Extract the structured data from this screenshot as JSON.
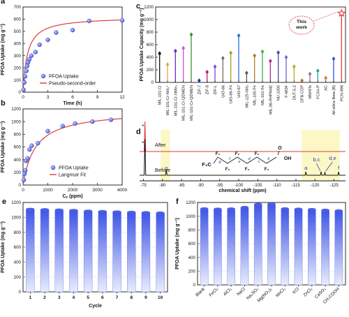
{
  "chart_data": [
    {
      "id": "a",
      "panel_label": "a",
      "type": "scatter",
      "xlabel": "Time (h)",
      "ylabel": "PFOA Uptake (mg g⁻¹)",
      "xlim": [
        0,
        12
      ],
      "ylim": [
        0,
        700
      ],
      "xticks": [
        0,
        3,
        6,
        9,
        12
      ],
      "yticks": [
        0,
        100,
        200,
        300,
        400,
        500,
        600,
        700
      ],
      "series": [
        {
          "name": "PFOA Uptake",
          "marker": "circle",
          "color": "#4a5fe0",
          "x": [
            0.05,
            0.15,
            0.25,
            0.4,
            0.5,
            0.6,
            0.75,
            1.0,
            1.5,
            2,
            3,
            4,
            6,
            8,
            12
          ],
          "y": [
            20,
            80,
            130,
            175,
            215,
            245,
            270,
            300,
            330,
            390,
            430,
            490,
            510,
            585,
            590
          ]
        },
        {
          "name": "Pseudo-second-order",
          "line": true,
          "color": "#e03a3a",
          "model": {
            "qe": 620,
            "k": 0.003
          }
        }
      ]
    },
    {
      "id": "b",
      "panel_label": "b",
      "type": "scatter",
      "xlabel": "Cₑ (ppm)",
      "ylabel": "PFOA Uptake (mg g⁻¹)",
      "xlim": [
        0,
        4000
      ],
      "ylim": [
        0,
        1200
      ],
      "xticks": [
        0,
        1000,
        2000,
        3000,
        4000
      ],
      "yticks": [
        0,
        200,
        400,
        600,
        800,
        1000,
        1200
      ],
      "series": [
        {
          "name": "PFOA Uptake",
          "marker": "circle",
          "color": "#4a5fe0",
          "x": [
            30,
            60,
            90,
            120,
            180,
            260,
            350,
            600,
            1000,
            1600,
            2100,
            2800,
            3550
          ],
          "y": [
            80,
            180,
            230,
            380,
            420,
            560,
            620,
            660,
            850,
            930,
            970,
            1000,
            1030
          ]
        },
        {
          "name": "Langmuir Fit",
          "line": true,
          "color": "#e03a3a",
          "model": {
            "qmax": 1180,
            "KL": 0.002
          }
        }
      ]
    },
    {
      "id": "c",
      "panel_label": "c",
      "type": "bar",
      "ylabel": "PFOA Uptake Capacity (mg g⁻¹)",
      "ylim": [
        0,
        1200
      ],
      "yticks": [
        0,
        200,
        400,
        600,
        800,
        1000,
        1200
      ],
      "categories": [
        "MIL-101-Cr",
        "MIL-101-Cr-NH₃⁺",
        "MIL-101-Cr-NMe₃",
        "MIL-101-Cr-QDMEN",
        "MIL-101-Cr-QDMEN",
        "ZIF-7",
        "ZIF-8",
        "ZIF-L",
        "UiO-66",
        "UiO-66-F4",
        "UiO-67",
        "MIL-125-NH₂",
        "MIL-100-Fe",
        "MIL-101-Fe",
        "MIL-96-RHPAM2",
        "NU-1000",
        "F-MOF",
        "DUT-5-2",
        "DFB-CDP",
        "MWNTs",
        "FCX4-P",
        "AC",
        "All-silica Beta (B)",
        "PCN-999"
      ],
      "values": [
        460,
        285,
        500,
        545,
        760,
        30,
        165,
        250,
        385,
        470,
        745,
        150,
        425,
        490,
        340,
        475,
        400,
        250,
        30,
        135,
        185,
        70,
        375,
        1100
      ],
      "colors": [
        "#111111",
        "#e8a33d",
        "#6a2fc9",
        "#d64fd6",
        "#3a8f3a",
        "#1a3fb0",
        "#c21a6e",
        "#7a4bd6",
        "#6e6e6e",
        "#a0a020",
        "#2a6fd6",
        "#5a5a5a",
        "#b07a30",
        "#3fb04a",
        "#b02a8a",
        "#3a4fb0",
        "#6a6ad6",
        "#b0b020",
        "#c07a3a",
        "#a06a9a",
        "#2aa0a0",
        "#e07a30",
        "#3a4fd6",
        "#e03a3a"
      ],
      "annotation": [
        "This",
        "work"
      ]
    },
    {
      "id": "d",
      "panel_label": "d",
      "type": "line",
      "xlabel": "chemical shift (ppm)",
      "xlim": [
        -74,
        -128
      ],
      "xticks": [
        -75,
        -80,
        -85,
        -90,
        -95,
        -100,
        -105,
        -110,
        -115,
        -120,
        -125
      ],
      "series": [
        {
          "name": "After",
          "color": "#e03a3a"
        },
        {
          "name": "Before",
          "color": "#111111"
        }
      ],
      "peak_labels": [
        "g",
        "a",
        "b,c",
        "d,e",
        "f",
        "*",
        "*"
      ],
      "structure_labels": [
        "F₃C",
        "F₂",
        "C",
        "OH",
        "O",
        "g",
        "f",
        "e",
        "d",
        "c",
        "b",
        "a"
      ]
    },
    {
      "id": "e",
      "panel_label": "e",
      "type": "bar",
      "xlabel": "Cycle",
      "ylabel": "PFOA Uptake (mg g⁻¹)",
      "ylim": [
        0,
        1200
      ],
      "yticks": [
        0,
        200,
        400,
        600,
        800,
        1000,
        1200
      ],
      "categories": [
        "1",
        "2",
        "3",
        "4",
        "5",
        "6",
        "7",
        "8",
        "9",
        "10"
      ],
      "values": [
        1110,
        1105,
        1100,
        1095,
        1085,
        1080,
        1075,
        1070,
        1065,
        1060
      ]
    },
    {
      "id": "f",
      "panel_label": "f",
      "type": "bar",
      "ylabel": "PFOA Uptake (mg g⁻¹)",
      "ylim": [
        0,
        1200
      ],
      "yticks": [
        0,
        200,
        400,
        600,
        800,
        1000,
        1200
      ],
      "categories": [
        "Blank",
        "FeCl₃",
        "AlCl₃",
        "NaCl",
        "Na₂SO₄",
        "Mg(NO₃)₂",
        "MnCl₂",
        "KCl",
        "ZnCl₂",
        "CaSO₄",
        "CH₃COOH"
      ],
      "values": [
        1110,
        1105,
        1108,
        1130,
        1175,
        1180,
        1110,
        1105,
        1100,
        1090,
        1080
      ]
    }
  ]
}
